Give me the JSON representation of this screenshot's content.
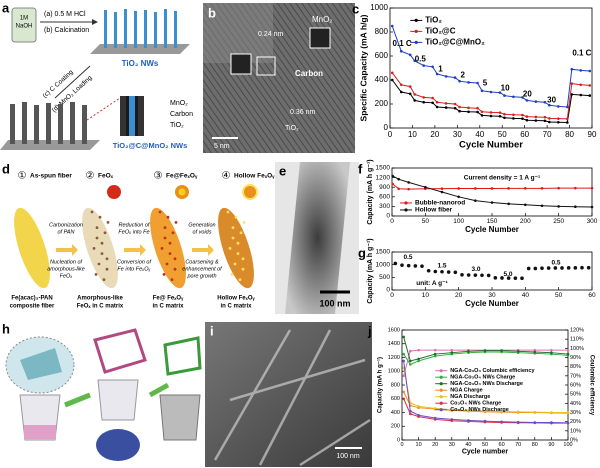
{
  "panel_a": {
    "label": "a",
    "bottle": [
      "1M",
      "NaOH"
    ],
    "steps": [
      "(a) 0.5 M HCl",
      "(b) Calcination",
      "(c) C Coating",
      "(d) MnO₂ Loading"
    ],
    "product1": "TiO₂ NWs",
    "layers": [
      "MnO₂",
      "Carbon",
      "TiO₂"
    ],
    "product2": "TiO₂@C@MnO₂ NWs"
  },
  "panel_b": {
    "label": "b",
    "texts": [
      "0.24 nm",
      "MnO₂",
      "Carbon",
      "0.36 nm",
      "TiO₂"
    ],
    "scale": "5 nm"
  },
  "panel_d": {
    "label": "d",
    "stages": [
      {
        "num": "①",
        "name": "As-spun fiber",
        "caption": [
          "Fe(acac)₃-PAN",
          "composite fiber"
        ]
      },
      {
        "num": "②",
        "name": "FeOₓ",
        "caption": [
          "Amorphous-like",
          "FeOₓ in C matrix"
        ]
      },
      {
        "num": "③",
        "name": "Fe@FeₓOᵧ",
        "caption": [
          "Fe@ FeₓOᵧ",
          "in C matrix"
        ]
      },
      {
        "num": "④",
        "name": "Hollow FeₓOᵧ",
        "caption": [
          "Hollow FeₓOᵧ",
          "in C matrix"
        ]
      }
    ],
    "arrows": [
      [
        "Carbonization",
        "of PAN",
        "Nucleation of",
        "amorphous-like",
        "FeOₓ"
      ],
      [
        "Reduction of",
        "FeOₓ into Fe",
        "Conversion of",
        "Fe into FeₓOᵧ"
      ],
      [
        "Generation",
        "of voids",
        "Coarsening &",
        "enhancement of",
        "pore growth"
      ]
    ]
  },
  "panel_e": {
    "label": "e",
    "scale": "100 nm"
  },
  "panel_h": {
    "label": "h"
  },
  "panel_i": {
    "label": "i",
    "scale": "100 nm"
  },
  "chart_data": [
    {
      "type": "line",
      "label": "c",
      "x_label": "Cycle Number",
      "y_label": "Specific Capacity (mA h/g)",
      "x": [
        1,
        5,
        9,
        11,
        15,
        19,
        21,
        25,
        29,
        31,
        35,
        39,
        41,
        45,
        49,
        51,
        55,
        59,
        61,
        65,
        69,
        71,
        75,
        79,
        81,
        85,
        89
      ],
      "xlim": [
        0,
        90
      ],
      "xticks": [
        0,
        10,
        20,
        30,
        40,
        50,
        60,
        70,
        80,
        90
      ],
      "ylim": [
        0,
        1000
      ],
      "yticks": [
        0,
        200,
        400,
        600,
        800,
        1000
      ],
      "series": [
        {
          "name": "TiO₂",
          "color": "#000000",
          "values": [
            400,
            300,
            285,
            230,
            215,
            210,
            175,
            170,
            165,
            140,
            135,
            133,
            105,
            100,
            98,
            85,
            80,
            78,
            65,
            62,
            60,
            50,
            48,
            46,
            280,
            275,
            270
          ]
        },
        {
          "name": "TiO₂@C",
          "color": "#d62020",
          "values": [
            460,
            360,
            345,
            280,
            255,
            250,
            215,
            205,
            200,
            175,
            168,
            165,
            135,
            130,
            128,
            115,
            110,
            108,
            95,
            92,
            90,
            80,
            78,
            76,
            370,
            360,
            355
          ]
        },
        {
          "name": "TiO₂@C@MnO₂",
          "color": "#1f3fbf",
          "values": [
            850,
            640,
            610,
            560,
            520,
            510,
            450,
            430,
            420,
            390,
            380,
            375,
            310,
            300,
            295,
            270,
            260,
            255,
            230,
            220,
            215,
            190,
            180,
            175,
            490,
            480,
            475
          ]
        }
      ],
      "annotations": [
        "0.1 C",
        "0.5",
        "1",
        "2",
        "5",
        "10",
        "20",
        "30",
        "0.1 C"
      ]
    },
    {
      "type": "line",
      "label": "f",
      "x_label": "Cycle Number",
      "y_label": "Capacity (mA h g⁻¹)",
      "x": [
        1,
        10,
        25,
        50,
        75,
        100,
        125,
        150,
        175,
        200,
        225,
        250,
        275,
        300
      ],
      "xlim": [
        0,
        300
      ],
      "xticks": [
        0,
        50,
        100,
        150,
        200,
        250,
        300
      ],
      "ylim": [
        0,
        1500
      ],
      "yticks": [
        0,
        300,
        600,
        900,
        1200,
        1500
      ],
      "series": [
        {
          "name": "Bubble-nanorod",
          "color": "#e01818",
          "values": [
            1000,
            850,
            840,
            850,
            855,
            860,
            860,
            860,
            865,
            865,
            865,
            870,
            870,
            870
          ]
        },
        {
          "name": "Hollow fiber",
          "color": "#111111",
          "values": [
            1250,
            1150,
            1050,
            900,
            750,
            600,
            480,
            420,
            380,
            350,
            320,
            300,
            290,
            280
          ]
        }
      ],
      "annotations": [
        "Current density = 1 A g⁻¹"
      ]
    },
    {
      "type": "scatter",
      "label": "g",
      "x_label": "Cycle Number",
      "y_label": "Capacity (mA h g⁻¹)",
      "x": [
        1,
        3,
        5,
        7,
        9,
        11,
        13,
        15,
        17,
        19,
        21,
        23,
        25,
        27,
        29,
        31,
        33,
        35,
        37,
        39,
        41,
        43,
        45,
        47,
        49,
        51,
        53,
        55,
        57,
        59
      ],
      "xlim": [
        0,
        60
      ],
      "xticks": [
        0,
        10,
        20,
        30,
        40,
        50,
        60
      ],
      "ylim": [
        0,
        1500
      ],
      "yticks": [
        0,
        500,
        1000,
        1500
      ],
      "series": [
        {
          "color": "#111111",
          "values": [
            1050,
            980,
            960,
            950,
            940,
            760,
            730,
            720,
            710,
            700,
            600,
            590,
            585,
            580,
            575,
            480,
            475,
            470,
            468,
            465,
            850,
            850,
            860,
            865,
            870,
            870,
            875,
            875,
            880,
            880
          ]
        }
      ],
      "annotations": [
        "0.5",
        "1.5",
        "3.0",
        "5.0",
        "0.5",
        "unit: A g⁻¹"
      ]
    },
    {
      "type": "line",
      "label": "j",
      "x_label": "Cycle number",
      "y_label": "Capacity (mA h g⁻¹)",
      "y2_label": "Coulombic efficiency",
      "x": [
        1,
        5,
        10,
        20,
        30,
        40,
        50,
        60,
        70,
        80,
        90,
        100
      ],
      "xlim": [
        0,
        100
      ],
      "xticks": [
        0,
        10,
        20,
        30,
        40,
        50,
        60,
        70,
        80,
        90,
        100
      ],
      "ylim": [
        0,
        1600
      ],
      "yticks": [
        0,
        200,
        400,
        600,
        800,
        1000,
        1200,
        1400,
        1600
      ],
      "y2lim": [
        0,
        120
      ],
      "y2ticks": [
        {
          "value": 0,
          "label": "0%"
        },
        {
          "value": 10,
          "label": "10%"
        },
        {
          "value": 20,
          "label": "20%"
        },
        {
          "value": 30,
          "label": "30%"
        },
        {
          "value": 40,
          "label": "40%"
        },
        {
          "value": 50,
          "label": "50%"
        },
        {
          "value": 60,
          "label": "60%"
        },
        {
          "value": 70,
          "label": "70%"
        },
        {
          "value": 80,
          "label": "80%"
        },
        {
          "value": 90,
          "label": "90%"
        },
        {
          "value": 100,
          "label": "100%"
        },
        {
          "value": 110,
          "label": "110%"
        },
        {
          "value": 120,
          "label": "120%"
        }
      ],
      "series": [
        {
          "name": "NGA-Co₃O₄ Columbic efficiency",
          "color": "#e070b0",
          "axis": "y2",
          "values": [
            70,
            97,
            98,
            98,
            98,
            98,
            98,
            98,
            98,
            98,
            98,
            98
          ]
        },
        {
          "name": "NGA-Co₃O₄ NWs Charge",
          "color": "#2fae3c",
          "values": [
            1250,
            1100,
            1150,
            1220,
            1250,
            1270,
            1280,
            1280,
            1270,
            1260,
            1250,
            1230
          ]
        },
        {
          "name": "NGA-Co₃O₄ NWs Discharge",
          "color": "#1d6e2a",
          "values": [
            1500,
            1150,
            1180,
            1250,
            1270,
            1290,
            1300,
            1300,
            1290,
            1280,
            1270,
            1250
          ]
        },
        {
          "name": "NGA Charge",
          "color": "#f08a1c",
          "values": [
            700,
            500,
            470,
            450,
            430,
            420,
            410,
            405,
            400,
            400,
            395,
            390
          ]
        },
        {
          "name": "NGA Discharge",
          "color": "#e8c020",
          "values": [
            1050,
            540,
            490,
            460,
            440,
            430,
            420,
            415,
            410,
            405,
            400,
            400
          ]
        },
        {
          "name": "Co₃O₄ NWs Charge",
          "color": "#e02a4a",
          "values": [
            600,
            380,
            340,
            300,
            280,
            270,
            260,
            255,
            250,
            250,
            245,
            245
          ]
        },
        {
          "name": "Co₃O₄ NWs Discharge",
          "color": "#6a4fc0",
          "values": [
            1150,
            420,
            360,
            320,
            300,
            285,
            275,
            265,
            260,
            255,
            255,
            250
          ]
        }
      ]
    }
  ]
}
